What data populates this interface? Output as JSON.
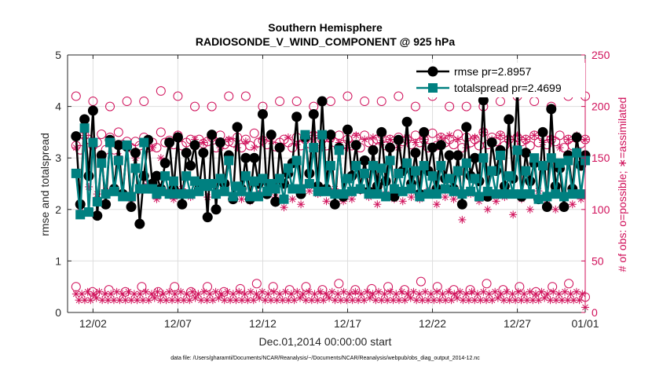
{
  "chart_data": {
    "type": "line",
    "title": "Southern Hemisphere",
    "subtitle": "RADIOSONDE_V_WIND_COMPONENT @ 925 hPa",
    "xlabel": "Dec.01,2014 00:00:00 start",
    "ylabel_left": "rmse and totalspread",
    "ylabel_right": "# of obs: o=possible; ∗=assimilated",
    "footer": "data file: /Users/gharamti/Documents/NCAR/Reanalysis/~/Documents/NCAR/Reanalysis/webpub/obs_diag_output_2014-12.nc",
    "xlim": [
      0.5,
      31.0
    ],
    "ylim_left": [
      0,
      5
    ],
    "ylim_right": [
      0,
      250
    ],
    "x_ticks": [
      {
        "value": 2,
        "label": "12/02"
      },
      {
        "value": 7,
        "label": "12/07"
      },
      {
        "value": 12,
        "label": "12/12"
      },
      {
        "value": 17,
        "label": "12/17"
      },
      {
        "value": 22,
        "label": "12/22"
      },
      {
        "value": 27,
        "label": "12/27"
      },
      {
        "value": 31,
        "label": "01/01"
      }
    ],
    "y_ticks_left": [
      "0",
      "1",
      "2",
      "3",
      "4",
      "5"
    ],
    "y_ticks_right": [
      "0",
      "50",
      "100",
      "150",
      "200",
      "250"
    ],
    "grid": true,
    "legend_position": "top-right",
    "colors": {
      "rmse": "#000000",
      "spread": "#008080",
      "obs": "#d0105a",
      "axis": "#262626",
      "grid": "#dedede"
    },
    "x_step_days": 0.25,
    "x_start": 1.0,
    "series": [
      {
        "name": "rmse pr=2.8957",
        "axis": "left",
        "values": [
          3.42,
          2.1,
          3.75,
          2.65,
          3.92,
          1.88,
          3.05,
          2.1,
          3.35,
          2.4,
          3.25,
          2.3,
          3.22,
          2.05,
          3.1,
          1.72,
          2.65,
          3.35,
          2.5,
          2.65,
          2.4,
          2.9,
          3.3,
          2.4,
          3.4,
          2.1,
          3.1,
          2.85,
          3.25,
          2.4,
          3.1,
          1.85,
          3.45,
          2.0,
          3.3,
          2.5,
          3.05,
          2.2,
          3.6,
          2.4,
          3.0,
          2.2,
          3.0,
          2.5,
          3.85,
          2.3,
          3.45,
          2.15,
          3.2,
          2.5,
          2.7,
          2.9,
          3.8,
          2.3,
          3.4,
          2.7,
          3.85,
          2.45,
          4.1,
          2.4,
          3.45,
          2.1,
          3.2,
          2.25,
          3.55,
          2.65,
          3.25,
          2.4,
          2.95,
          2.35,
          3.15,
          2.45,
          3.5,
          2.55,
          3.2,
          2.25,
          3.35,
          2.75,
          3.7,
          2.5,
          3.1,
          2.3,
          3.5,
          2.75,
          3.2,
          2.4,
          3.25,
          2.6,
          3.05,
          2.4,
          3.05,
          2.1,
          3.6,
          2.65,
          3.0,
          2.55,
          4.12,
          2.25,
          3.3,
          2.75,
          3.15,
          2.45,
          3.75,
          2.6,
          4.38,
          2.25,
          3.1,
          2.55,
          2.9,
          2.2,
          3.5,
          2.05,
          3.95,
          2.45,
          2.8,
          2.05,
          3.05,
          2.4,
          3.4,
          2.85,
          3.05,
          2.3,
          3.5,
          2.15,
          3.1,
          2.35,
          2.95,
          2.55,
          3.4,
          2.25,
          3.65,
          2.1,
          2.75,
          2.65,
          1.68,
          2.95,
          2.3,
          2.95,
          2.55,
          1.65,
          2.65,
          2.95,
          3.35,
          2.55,
          1.35,
          2.55,
          3.05,
          2.3,
          3.35,
          2.75,
          3.6,
          2.65,
          3.15,
          2.45,
          3.35,
          2.05,
          3.15,
          2.3,
          3.85,
          2.6,
          3.15,
          2.15,
          3.05,
          2.65,
          3.65,
          2.55,
          3.75,
          2.35,
          4.4,
          2.15,
          4.38,
          2.05,
          3.2,
          1.68
        ]
      },
      {
        "name": "totalspread pr=2.4699",
        "axis": "left",
        "values": [
          2.7,
          1.9,
          3.58,
          1.95,
          3.3,
          2.15,
          2.9,
          2.3,
          3.3,
          2.35,
          2.95,
          2.25,
          3.25,
          2.25,
          2.8,
          2.4,
          3.3,
          2.4,
          2.4,
          2.3,
          2.35,
          2.65,
          2.3,
          2.55,
          2.3,
          2.3,
          2.65,
          2.3,
          2.55,
          2.35,
          2.5,
          2.45,
          2.5,
          2.3,
          2.6,
          2.35,
          2.95,
          2.25,
          2.45,
          2.35,
          2.65,
          2.25,
          2.55,
          2.25,
          2.6,
          2.35,
          2.5,
          2.4,
          2.6,
          2.2,
          2.8,
          2.4,
          2.95,
          2.4,
          3.45,
          2.5,
          3.2,
          2.35,
          3.45,
          2.35,
          2.85,
          2.3,
          3.15,
          2.3,
          2.6,
          2.35,
          2.85,
          2.4,
          2.7,
          2.3,
          2.85,
          2.3,
          2.8,
          2.25,
          2.95,
          2.4,
          2.7,
          2.35,
          2.9,
          2.4,
          2.75,
          2.25,
          2.85,
          2.3,
          2.65,
          2.3,
          2.85,
          2.4,
          2.6,
          2.35,
          2.75,
          2.3,
          2.9,
          2.35,
          2.6,
          2.25,
          3.0,
          2.35,
          2.75,
          2.3,
          3.05,
          2.3,
          2.65,
          2.3,
          3.15,
          2.3,
          2.75,
          2.3,
          3.0,
          2.2,
          2.85,
          2.25,
          3.0,
          2.3,
          2.9,
          2.25,
          2.95,
          2.3,
          3.1,
          2.3,
          2.95,
          2.35,
          2.95,
          2.35,
          2.85,
          2.3,
          2.95,
          2.3,
          2.8,
          2.3,
          2.6,
          2.3,
          2.75,
          2.3,
          2.6,
          2.3,
          2.75,
          2.1,
          2.4,
          2.25,
          2.85,
          2.3,
          2.55,
          2.3,
          2.75,
          2.2,
          2.4,
          2.2,
          2.75,
          2.3,
          3.05,
          2.3,
          3.15,
          2.35,
          2.95,
          2.3,
          3.1,
          2.1,
          2.85,
          2.4,
          2.95,
          2.3,
          3.05,
          2.1,
          2.95,
          2.2,
          3.15,
          2.15,
          3.55,
          2.15,
          3.4,
          2.0,
          3.8,
          2.05,
          3.75,
          2.4
        ]
      },
      {
        "name": "possible obs",
        "axis": "right",
        "marker": "o",
        "daily": true,
        "values": [
          210,
          205,
          200,
          205,
          205,
          215,
          210,
          200,
          200,
          210,
          210,
          200,
          205,
          205,
          200,
          205,
          210,
          205,
          205,
          210,
          200,
          210,
          200,
          200,
          200,
          205,
          210,
          205,
          200,
          210,
          210
        ]
      },
      {
        "name": "possible obs (00Z)",
        "axis": "right",
        "marker": "o",
        "values": [
          162,
          158,
          172,
          168,
          162,
          165,
          173,
          158,
          170,
          158,
          175,
          163,
          166,
          160,
          166,
          162,
          170,
          160,
          165,
          160,
          175,
          165,
          167,
          163,
          172,
          162,
          165,
          168,
          162,
          168,
          164,
          166,
          170,
          160,
          172,
          163,
          166,
          165,
          170,
          160,
          168,
          162,
          174,
          165,
          167,
          163,
          172,
          161,
          165,
          168,
          165,
          160,
          170,
          162,
          168,
          164,
          172,
          166,
          168,
          162,
          170,
          165,
          172,
          163,
          168,
          162,
          170,
          160,
          172,
          165,
          166,
          168,
          173,
          162,
          168,
          164,
          170,
          166,
          168,
          163,
          172,
          165,
          168,
          160,
          174,
          162,
          170,
          165,
          168,
          163,
          173,
          160,
          170,
          165,
          168,
          162,
          175,
          163,
          170,
          166,
          172,
          162,
          168,
          164,
          170,
          166,
          168,
          162,
          172,
          165,
          170,
          163,
          168,
          166,
          172,
          160,
          168,
          162,
          170,
          164,
          168,
          162,
          170,
          165,
          172,
          163,
          168,
          166,
          170,
          162,
          168,
          164,
          170,
          166,
          172,
          163,
          168,
          160,
          170,
          165,
          168,
          162,
          172,
          164,
          170,
          165,
          168,
          162,
          170,
          166,
          172,
          163,
          170,
          165,
          168,
          162,
          172,
          164,
          170,
          166,
          168,
          163,
          172,
          165,
          170,
          162,
          168,
          164,
          172,
          166,
          170,
          163,
          168,
          160,
          172,
          165
        ]
      },
      {
        "name": "assimilated obs",
        "axis": "right",
        "marker": "*",
        "values": [
          160,
          102,
          172,
          122,
          160,
          115,
          152,
          118,
          168,
          120,
          152,
          112,
          163,
          110,
          150,
          118,
          165,
          125,
          160,
          110,
          150,
          118,
          163,
          110,
          172,
          120,
          155,
          112,
          168,
          120,
          165,
          112,
          170,
          118,
          160,
          120,
          168,
          112,
          160,
          110,
          166,
          108,
          160,
          115,
          168,
          118,
          166,
          112,
          160,
          102,
          170,
          110,
          163,
          105,
          168,
          118,
          172,
          115,
          160,
          108,
          168,
          120,
          165,
          108,
          160,
          110,
          172,
          118,
          168,
          112,
          170,
          105,
          165,
          115,
          168,
          110,
          160,
          108,
          170,
          112,
          165,
          110,
          168,
          118,
          160,
          105,
          170,
          112,
          172,
          110,
          168,
          90,
          160,
          115,
          170,
          108,
          175,
          100,
          168,
          108,
          172,
          112,
          168,
          95,
          172,
          110,
          168,
          100,
          172,
          118,
          165,
          105,
          168,
          100,
          160,
          112,
          168,
          105,
          172,
          110,
          168,
          103,
          170,
          108,
          166,
          102,
          168,
          110,
          170,
          105,
          172,
          95,
          168,
          108,
          170,
          118,
          165,
          100,
          172,
          105,
          168,
          108,
          170,
          103,
          172,
          110,
          168,
          112,
          170,
          105,
          165,
          110,
          168,
          100,
          172,
          108,
          168,
          103,
          170,
          118,
          165,
          105,
          168,
          110,
          172,
          100,
          170,
          108,
          168,
          103,
          170,
          112,
          165,
          108,
          168,
          100
        ]
      },
      {
        "name": "possible obs low",
        "axis": "right",
        "marker": "o",
        "values": [
          25,
          20,
          22,
          20,
          25,
          20,
          25,
          20,
          25,
          20,
          23,
          28,
          25,
          22,
          25,
          22,
          28,
          22,
          23,
          25,
          22,
          30,
          25,
          22,
          22,
          28,
          22,
          25,
          20,
          25,
          28,
          15
        ]
      },
      {
        "name": "assimilated obs low",
        "axis": "right",
        "marker": "*",
        "values": [
          18,
          12,
          18,
          12,
          20,
          12,
          18,
          14,
          20,
          12,
          18,
          12,
          18,
          12,
          20,
          12,
          18,
          12,
          20,
          12,
          18,
          12,
          18,
          12,
          20,
          12,
          18,
          14,
          20,
          12,
          18,
          12,
          20,
          12,
          18,
          12,
          20,
          12,
          18,
          12,
          20,
          14,
          18,
          12,
          20,
          12,
          18,
          12,
          20,
          14,
          18,
          12,
          20,
          12,
          18,
          12,
          20,
          12,
          18,
          12,
          20,
          12,
          18,
          14,
          20,
          12,
          18,
          12,
          20,
          12,
          18,
          12,
          20,
          12,
          18,
          12,
          20,
          14,
          18,
          12,
          20,
          12,
          18,
          12,
          20,
          12,
          18,
          14,
          20,
          12,
          18,
          12,
          20,
          12,
          18,
          12,
          20,
          12,
          18,
          12,
          20,
          14,
          18,
          12,
          20,
          12,
          18,
          12,
          20,
          12,
          18,
          12,
          20,
          12,
          18,
          14,
          20,
          12,
          18,
          12,
          20,
          12,
          18,
          12,
          20,
          12,
          18,
          12,
          20,
          12,
          18,
          14,
          20,
          12,
          18,
          12,
          20,
          12,
          18,
          12,
          20,
          12,
          18,
          12,
          20,
          14,
          18,
          12,
          20,
          12,
          18,
          12,
          20,
          12,
          18,
          12,
          20,
          12,
          18,
          12,
          20,
          14,
          18,
          12,
          20,
          12,
          18,
          12,
          20,
          12,
          18,
          12,
          20,
          12,
          18,
          5
        ]
      }
    ]
  }
}
